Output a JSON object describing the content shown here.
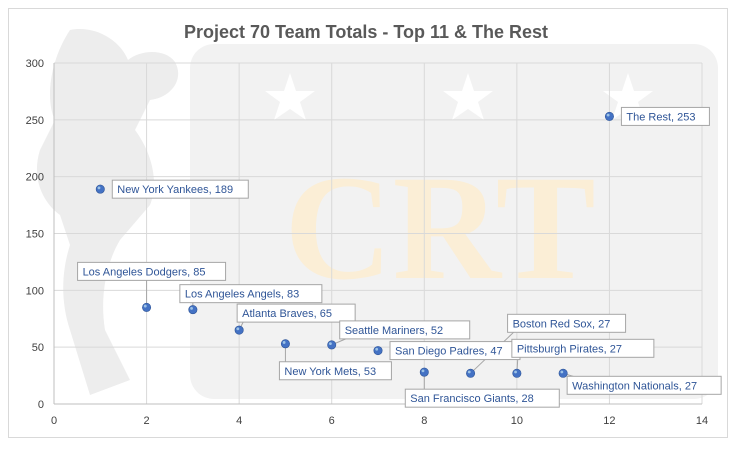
{
  "chart_data": {
    "type": "scatter",
    "title": "Project 70 Team Totals - Top 11 & The Rest",
    "xlabel": "",
    "ylabel": "",
    "xlim": [
      0,
      14
    ],
    "ylim": [
      0,
      300
    ],
    "x_ticks": [
      0,
      2,
      4,
      6,
      8,
      10,
      12,
      14
    ],
    "y_ticks": [
      0,
      50,
      100,
      150,
      200,
      250,
      300
    ],
    "grid": true,
    "points": [
      {
        "x": 1,
        "y": 189,
        "label": "New York Yankees, 189"
      },
      {
        "x": 2,
        "y": 85,
        "label": "Los Angeles Dodgers, 85"
      },
      {
        "x": 3,
        "y": 83,
        "label": "Los Angeles Angels, 83"
      },
      {
        "x": 4,
        "y": 65,
        "label": "Atlanta Braves, 65"
      },
      {
        "x": 5,
        "y": 53,
        "label": "New York Mets, 53"
      },
      {
        "x": 6,
        "y": 52,
        "label": "Seattle Mariners, 52"
      },
      {
        "x": 7,
        "y": 47,
        "label": "San Diego Padres, 47"
      },
      {
        "x": 8,
        "y": 28,
        "label": "San Francisco Giants, 28"
      },
      {
        "x": 9,
        "y": 27,
        "label": "Boston Red Sox, 27"
      },
      {
        "x": 10,
        "y": 27,
        "label": "Pittsburgh Pirates, 27"
      },
      {
        "x": 11,
        "y": 27,
        "label": "Washington Nationals, 27"
      },
      {
        "x": 12,
        "y": 253,
        "label": "The Rest, 253"
      }
    ],
    "watermark_text": "CRT"
  },
  "colors": {
    "marker": "#4472c4",
    "label_text": "#2f5597",
    "label_border": "#a6a6a6",
    "grid": "#d9d9d9",
    "watermark_gray": "#ebebeb",
    "watermark_gold": "#fbeed6"
  }
}
